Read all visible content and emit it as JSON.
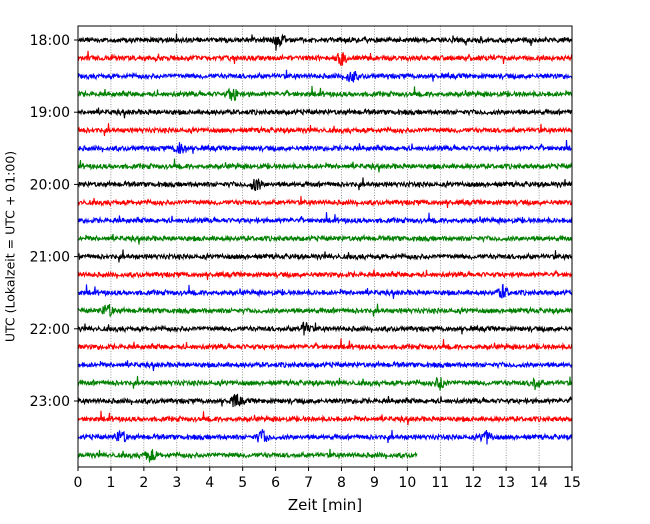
{
  "chart_data": {
    "type": "line",
    "title": "",
    "xlabel": "Zeit  [min]",
    "ylabel": "UTC (Lokalzeit = UTC + 01:00)",
    "xlim": [
      0,
      15
    ],
    "x_ticks": [
      "0",
      "1",
      "2",
      "3",
      "4",
      "5",
      "6",
      "7",
      "8",
      "9",
      "10",
      "11",
      "12",
      "13",
      "14",
      "15"
    ],
    "y_ticks": [
      "18:00",
      "19:00",
      "20:00",
      "21:00",
      "22:00",
      "23:00"
    ],
    "grid": "vertical dotted lines at each minute",
    "legend": "none",
    "trace_colors": [
      "#000000",
      "#ff0000",
      "#0000ff",
      "#008000"
    ],
    "traces": [
      {
        "start": "18:00",
        "end_min": 15,
        "events": [
          6.1
        ]
      },
      {
        "start": "18:15",
        "end_min": 15,
        "events": [
          8.0
        ]
      },
      {
        "start": "18:30",
        "end_min": 15,
        "events": [
          8.3
        ]
      },
      {
        "start": "18:45",
        "end_min": 15,
        "events": [
          4.7
        ]
      },
      {
        "start": "19:00",
        "end_min": 15,
        "events": []
      },
      {
        "start": "19:15",
        "end_min": 15,
        "events": []
      },
      {
        "start": "19:30",
        "end_min": 15,
        "events": [
          3.1
        ]
      },
      {
        "start": "19:45",
        "end_min": 15,
        "events": []
      },
      {
        "start": "20:00",
        "end_min": 15,
        "events": [
          5.4
        ]
      },
      {
        "start": "20:15",
        "end_min": 15,
        "events": []
      },
      {
        "start": "20:30",
        "end_min": 15,
        "events": []
      },
      {
        "start": "20:45",
        "end_min": 15,
        "events": []
      },
      {
        "start": "21:00",
        "end_min": 15,
        "events": []
      },
      {
        "start": "21:15",
        "end_min": 15,
        "events": []
      },
      {
        "start": "21:30",
        "end_min": 15,
        "events": [
          12.9
        ]
      },
      {
        "start": "21:45",
        "end_min": 15,
        "events": [
          0.9
        ]
      },
      {
        "start": "22:00",
        "end_min": 15,
        "events": [
          6.9
        ]
      },
      {
        "start": "22:15",
        "end_min": 15,
        "events": []
      },
      {
        "start": "22:30",
        "end_min": 15,
        "events": []
      },
      {
        "start": "22:45",
        "end_min": 15,
        "events": [
          11.0,
          13.9
        ]
      },
      {
        "start": "23:00",
        "end_min": 15,
        "events": [
          4.8
        ]
      },
      {
        "start": "23:15",
        "end_min": 15,
        "events": []
      },
      {
        "start": "23:30",
        "end_min": 15,
        "events": [
          1.3,
          5.6,
          12.4
        ]
      },
      {
        "start": "23:45",
        "end_min": 10.3,
        "events": [
          2.2
        ]
      }
    ]
  }
}
